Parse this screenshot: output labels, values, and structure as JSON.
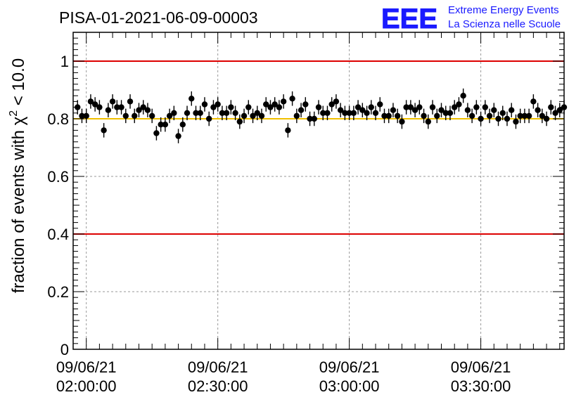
{
  "chart_data": {
    "type": "scatter",
    "title": "PISA-01-2021-06-09-00003",
    "ylabel_prefix": "fraction of events with ",
    "ylabel_symbol": "χ",
    "ylabel_sup": "2",
    "ylabel_suffix": " < 10.0",
    "ylim": [
      0,
      1.1
    ],
    "yticks": [
      0,
      0.2,
      0.4,
      0.6,
      0.8,
      1
    ],
    "ytick_labels": [
      "0",
      "0.2",
      "0.4",
      "0.6",
      "0.8",
      "1"
    ],
    "xlim_minutes": [
      117,
      229
    ],
    "xticks": [
      {
        "minute": 120,
        "date": "09/06/21",
        "time": "02:00:00"
      },
      {
        "minute": 150,
        "date": "09/06/21",
        "time": "02:30:00"
      },
      {
        "minute": 180,
        "date": "09/06/21",
        "time": "03:00:00"
      },
      {
        "minute": 210,
        "date": "09/06/21",
        "time": "03:30:00"
      }
    ],
    "grid": true,
    "reference_lines": [
      {
        "y": 1.0,
        "color": "#dd0000"
      },
      {
        "y": 0.4,
        "color": "#dd0000"
      },
      {
        "y": 0.8,
        "color": "#f0c000"
      }
    ],
    "x_minutes": [
      118,
      119,
      120,
      121,
      122,
      123,
      124,
      125,
      126,
      127,
      128,
      129,
      130,
      131,
      132,
      133,
      134,
      135,
      136,
      137,
      138,
      139,
      140,
      141,
      142,
      143,
      144,
      145,
      146,
      147,
      148,
      149,
      150,
      151,
      152,
      153,
      154,
      155,
      156,
      157,
      158,
      159,
      160,
      161,
      162,
      163,
      164,
      165,
      166,
      167,
      168,
      169,
      170,
      171,
      172,
      173,
      174,
      175,
      176,
      177,
      178,
      179,
      180,
      181,
      182,
      183,
      184,
      185,
      186,
      187,
      188,
      189,
      190,
      191,
      192,
      193,
      194,
      195,
      196,
      197,
      198,
      199,
      200,
      201,
      202,
      203,
      204,
      205,
      206,
      207,
      208,
      209,
      210,
      211,
      212,
      213,
      214,
      215,
      216,
      217,
      218,
      219,
      220,
      221,
      222,
      223,
      224,
      225,
      226,
      227,
      228,
      229
    ],
    "y": [
      0.84,
      0.81,
      0.81,
      0.86,
      0.85,
      0.84,
      0.76,
      0.83,
      0.86,
      0.84,
      0.84,
      0.81,
      0.86,
      0.81,
      0.83,
      0.84,
      0.83,
      0.81,
      0.75,
      0.78,
      0.78,
      0.81,
      0.82,
      0.74,
      0.78,
      0.82,
      0.87,
      0.82,
      0.82,
      0.85,
      0.8,
      0.84,
      0.85,
      0.82,
      0.82,
      0.84,
      0.82,
      0.79,
      0.81,
      0.84,
      0.81,
      0.82,
      0.81,
      0.85,
      0.84,
      0.85,
      0.84,
      0.86,
      0.76,
      0.87,
      0.81,
      0.83,
      0.85,
      0.8,
      0.8,
      0.84,
      0.82,
      0.82,
      0.85,
      0.86,
      0.83,
      0.82,
      0.82,
      0.82,
      0.84,
      0.83,
      0.82,
      0.84,
      0.82,
      0.85,
      0.81,
      0.81,
      0.83,
      0.81,
      0.79,
      0.84,
      0.84,
      0.83,
      0.84,
      0.81,
      0.79,
      0.84,
      0.81,
      0.83,
      0.82,
      0.82,
      0.84,
      0.85,
      0.88,
      0.83,
      0.81,
      0.84,
      0.8,
      0.84,
      0.81,
      0.83,
      0.8,
      0.82,
      0.8,
      0.83,
      0.79,
      0.81,
      0.81,
      0.81,
      0.86,
      0.83,
      0.81,
      0.8,
      0.84,
      0.82,
      0.83,
      0.84
    ],
    "error": 0.025
  },
  "logo": {
    "text": "EEE",
    "line1": "Extreme Energy Events",
    "line2": "La Scienza nelle Scuole",
    "color": "#1a1aff"
  }
}
